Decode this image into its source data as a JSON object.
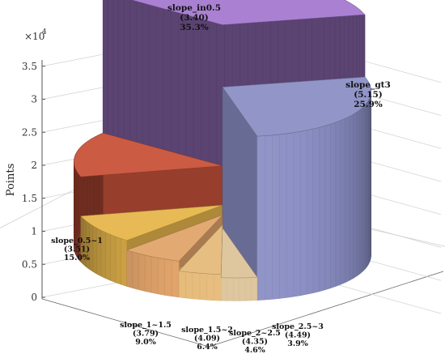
{
  "chart_data": {
    "type": "pie",
    "style": "3d-pie-with-variable-heights",
    "ylabel": "Points",
    "yscale_label": "×10",
    "yscale_exponent": "4",
    "ylim": [
      0,
      3.8
    ],
    "yticks": [
      "0",
      "0.5",
      "1",
      "1.5",
      "2",
      "2.5",
      "3",
      "3.5"
    ],
    "grid": true,
    "slices": [
      {
        "label": "slope_in0.5",
        "value_label": "(3.40)",
        "percent_label": "35.3%",
        "percent": 35.3,
        "height": 3.45,
        "color": "#a57ad0"
      },
      {
        "label": "slope_gt3",
        "value_label": "(5.15)",
        "percent_label": "25.9%",
        "percent": 25.9,
        "height": 2.5,
        "color": "#8b8fc4"
      },
      {
        "label": "slope_2.5~3",
        "value_label": "(4.49)",
        "percent_label": "3.9%",
        "percent": 3.9,
        "height": 0.35,
        "color": "#dcc39a"
      },
      {
        "label": "slope_2~2.5",
        "value_label": "(4.35)",
        "percent_label": "4.6%",
        "percent": 4.6,
        "height": 0.4,
        "color": "#e6bb7a"
      },
      {
        "label": "slope_1.5~2",
        "value_label": "(4.09)",
        "percent_label": "6.4%",
        "percent": 6.4,
        "height": 0.55,
        "color": "#e1a46b"
      },
      {
        "label": "slope_1~1.5",
        "value_label": "(3.79)",
        "percent_label": "9.0%",
        "percent": 9.0,
        "height": 0.7,
        "color": "#e6b64c"
      },
      {
        "label": "slope_0.5~1",
        "value_label": "(3.51)",
        "percent_label": "15.0%",
        "percent": 15.0,
        "height": 1.3,
        "color": "#c9523a"
      }
    ]
  }
}
